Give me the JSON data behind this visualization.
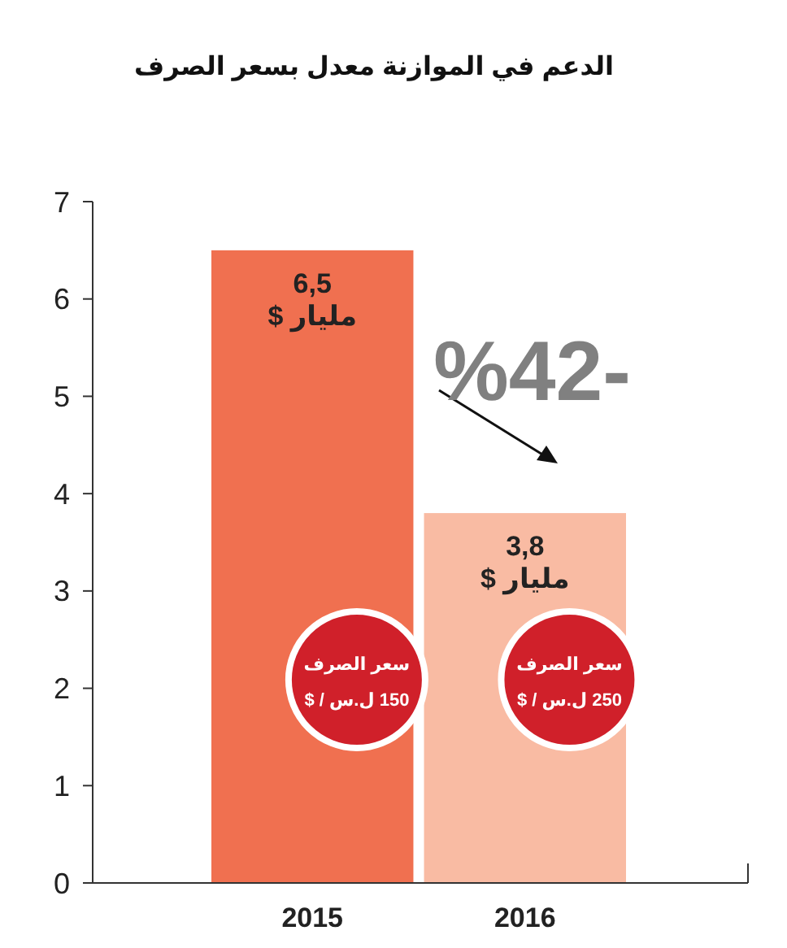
{
  "chart_data": {
    "type": "bar",
    "title": "الدعم في الموازنة معدل بسعر الصرف",
    "categories": [
      "2015",
      "2016"
    ],
    "values": [
      6.5,
      3.8
    ],
    "colors": [
      "#f07050",
      "#f9bba3"
    ],
    "value_labels": [
      "6,5\nمليار $",
      "3,8\nمليار $"
    ],
    "ylim": [
      0,
      7
    ],
    "yticks": [
      0,
      1,
      2,
      3,
      4,
      5,
      6,
      7
    ],
    "annotations": [
      "%42-",
      "سعر الصرف\n150 ل.س / $",
      "سعر الصرف\n250 ل.س / $"
    ]
  }
}
